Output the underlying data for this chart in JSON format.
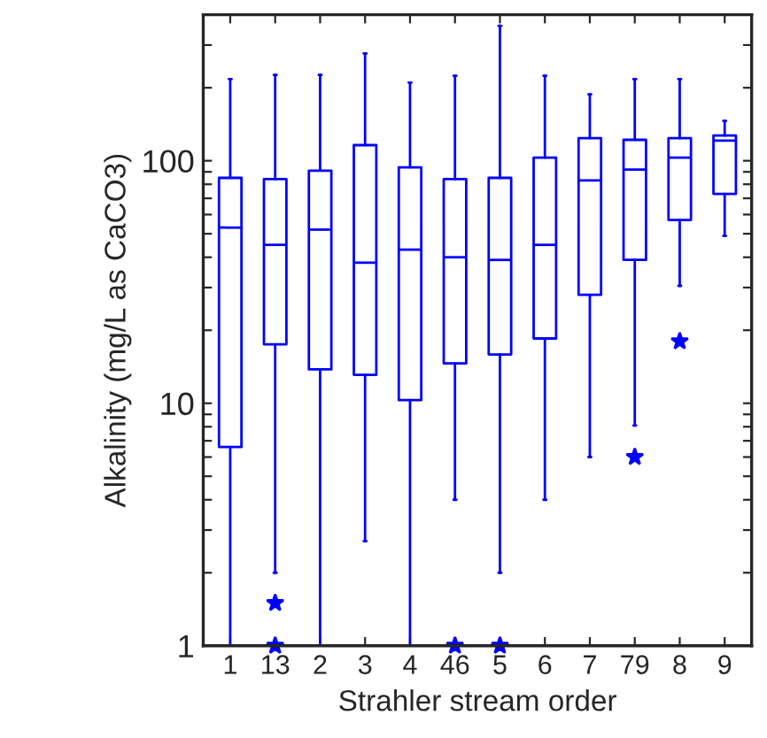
{
  "chart_data": {
    "type": "box",
    "xlabel": "Strahler stream order",
    "ylabel": "Alkalinity (mg/L as CaCO3)",
    "categories": [
      "1",
      "13",
      "2",
      "3",
      "4",
      "46",
      "5",
      "6",
      "7",
      "79",
      "8",
      "9"
    ],
    "color": "#0000ff",
    "log": true,
    "ylim": [
      1,
      400
    ],
    "yticks": [
      1,
      {
        "value": 2,
        "label": null
      },
      {
        "value": 3,
        "label": null
      },
      {
        "value": 4,
        "label": null
      },
      {
        "value": 5,
        "label": null
      },
      {
        "value": 6,
        "label": null
      },
      {
        "value": 7,
        "label": null
      },
      {
        "value": 8,
        "label": null
      },
      {
        "value": 9,
        "label": null
      },
      10,
      {
        "value": 20,
        "label": null
      },
      {
        "value": 30,
        "label": null
      },
      {
        "value": 40,
        "label": null
      },
      {
        "value": 50,
        "label": null
      },
      {
        "value": 60,
        "label": null
      },
      {
        "value": 70,
        "label": null
      },
      {
        "value": 80,
        "label": null
      },
      {
        "value": 90,
        "label": null
      },
      100,
      {
        "value": 200,
        "label": null
      },
      {
        "value": 300,
        "label": null
      },
      {
        "value": 400,
        "label": null
      }
    ],
    "grid": false,
    "marker": "star",
    "boxes": [
      {
        "low": 1,
        "q1": 6.6,
        "median": 53,
        "q3": 85,
        "high": 217
      },
      {
        "low": 2.0,
        "q1": 17.5,
        "median": 45,
        "q3": 84,
        "high": 226,
        "outliers": [
          1.5,
          1
        ]
      },
      {
        "low": 1,
        "q1": 13.8,
        "median": 52,
        "q3": 91,
        "high": 226
      },
      {
        "low": 2.7,
        "q1": 13.1,
        "median": 38,
        "q3": 116,
        "high": 277
      },
      {
        "low": 1,
        "q1": 10.3,
        "median": 43,
        "q3": 94,
        "high": 210
      },
      {
        "low": 4.0,
        "q1": 14.6,
        "median": 40,
        "q3": 84,
        "high": 224,
        "outliers": [
          1
        ]
      },
      {
        "low": 2.0,
        "q1": 15.9,
        "median": 39,
        "q3": 85,
        "high": 360,
        "outliers": [
          1
        ]
      },
      {
        "low": 4.0,
        "q1": 18.5,
        "median": 45,
        "q3": 103,
        "high": 224
      },
      {
        "low": 6.0,
        "q1": 28,
        "median": 83,
        "q3": 124,
        "high": 188
      },
      {
        "low": 8.1,
        "q1": 39,
        "median": 92,
        "q3": 122,
        "high": 217,
        "outliers": [
          6.0
        ]
      },
      {
        "low": 30.5,
        "q1": 57,
        "median": 103,
        "q3": 124,
        "high": 217,
        "outliers": [
          18
        ]
      },
      {
        "low": 49,
        "q1": 73,
        "median": 121,
        "q3": 127,
        "high": 146
      }
    ]
  }
}
